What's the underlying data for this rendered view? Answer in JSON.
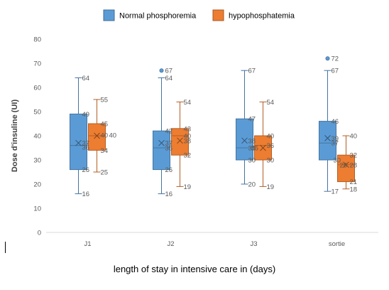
{
  "chart_data": {
    "type": "boxplot",
    "title": "",
    "ylabel": "Dose d'insuline (UI)",
    "xlabel": "length of stay in intensive care in (days)",
    "ylim": [
      0,
      80
    ],
    "yticks": [
      0,
      10,
      20,
      30,
      40,
      50,
      60,
      70,
      80
    ],
    "grid": false,
    "legend_position": "top",
    "categories": [
      "J1",
      "J2",
      "J3",
      "sortie"
    ],
    "series": [
      {
        "name": "Normal phosphoremia",
        "color": "#5b9bd5",
        "boxes": [
          {
            "min": 16,
            "q1": 26,
            "median": 36,
            "q3": 49,
            "max": 64,
            "mean": 37,
            "outliers": []
          },
          {
            "min": 16,
            "q1": 26,
            "median": 35,
            "q3": 42,
            "max": 64,
            "mean": 37,
            "outliers": [
              67
            ]
          },
          {
            "min": 20,
            "q1": 30,
            "median": 35,
            "q3": 47,
            "max": 67,
            "mean": 38,
            "outliers": []
          },
          {
            "min": 17,
            "q1": 30,
            "median": 37,
            "q3": 46,
            "max": 67,
            "mean": 39,
            "outliers": [
              72
            ]
          }
        ]
      },
      {
        "name": "hypophosphatemia",
        "color": "#ed7d31",
        "boxes": [
          {
            "min": 25,
            "q1": 34,
            "median": 40,
            "q3": 45,
            "max": 55,
            "mean": 40,
            "outliers": []
          },
          {
            "min": 19,
            "q1": 32,
            "median": 40,
            "q3": 43,
            "max": 54,
            "mean": 38,
            "outliers": []
          },
          {
            "min": 19,
            "q1": 30,
            "median": 36,
            "q3": 40,
            "max": 54,
            "mean": 35,
            "outliers": []
          },
          {
            "min": 18,
            "q1": 21,
            "median": 28,
            "q3": 32,
            "max": 40,
            "mean": 28,
            "outliers": []
          }
        ]
      }
    ],
    "annotations": [
      [
        {
          "label": "64",
          "v": 64
        },
        {
          "label": "49",
          "v": 49
        },
        {
          "label": "37",
          "v": 37
        },
        {
          "label": "36",
          "v": 35.3
        },
        {
          "label": "26",
          "v": 26
        },
        {
          "label": "16",
          "v": 16
        }
      ],
      [
        {
          "label": "55",
          "v": 55
        },
        {
          "label": "45",
          "v": 45
        },
        {
          "label": "40",
          "v": 40.3
        },
        {
          "label": "40",
          "v": 40.3,
          "dx": 12
        },
        {
          "label": "34",
          "v": 34
        },
        {
          "label": "25",
          "v": 25
        }
      ],
      [
        {
          "label": "67",
          "v": 67
        },
        {
          "label": "64",
          "v": 64
        },
        {
          "label": "42",
          "v": 42
        },
        {
          "label": "37",
          "v": 37
        },
        {
          "label": "35",
          "v": 35
        },
        {
          "label": "26",
          "v": 26
        },
        {
          "label": "16",
          "v": 16
        }
      ],
      [
        {
          "label": "54",
          "v": 54
        },
        {
          "label": "43",
          "v": 43
        },
        {
          "label": "40",
          "v": 40
        },
        {
          "label": "38",
          "v": 38
        },
        {
          "label": "32",
          "v": 32
        },
        {
          "label": "19",
          "v": 19
        }
      ],
      [
        {
          "label": "67",
          "v": 67
        },
        {
          "label": "47",
          "v": 47
        },
        {
          "label": "38",
          "v": 38
        },
        {
          "label": "35",
          "v": 35
        },
        {
          "label": "30",
          "v": 30
        },
        {
          "label": "20",
          "v": 20
        }
      ],
      [
        {
          "label": "54",
          "v": 54
        },
        {
          "label": "40",
          "v": 40
        },
        {
          "label": "36",
          "v": 36
        },
        {
          "label": "35",
          "v": 35,
          "dx": -22
        },
        {
          "label": "30",
          "v": 30
        },
        {
          "label": "19",
          "v": 19
        }
      ],
      [
        {
          "label": "72",
          "v": 72
        },
        {
          "label": "67",
          "v": 67
        },
        {
          "label": "46",
          "v": 46
        },
        {
          "label": "39",
          "v": 39
        },
        {
          "label": "37",
          "v": 37
        },
        {
          "label": "30",
          "v": 30,
          "dx": 3
        },
        {
          "label": "17",
          "v": 17
        }
      ],
      [
        {
          "label": "40",
          "v": 40
        },
        {
          "label": "32",
          "v": 32
        },
        {
          "label": "28",
          "v": 28
        },
        {
          "label": "28",
          "v": 28,
          "dx": -14
        },
        {
          "label": "21",
          "v": 21
        },
        {
          "label": "18",
          "v": 18
        }
      ]
    ]
  }
}
